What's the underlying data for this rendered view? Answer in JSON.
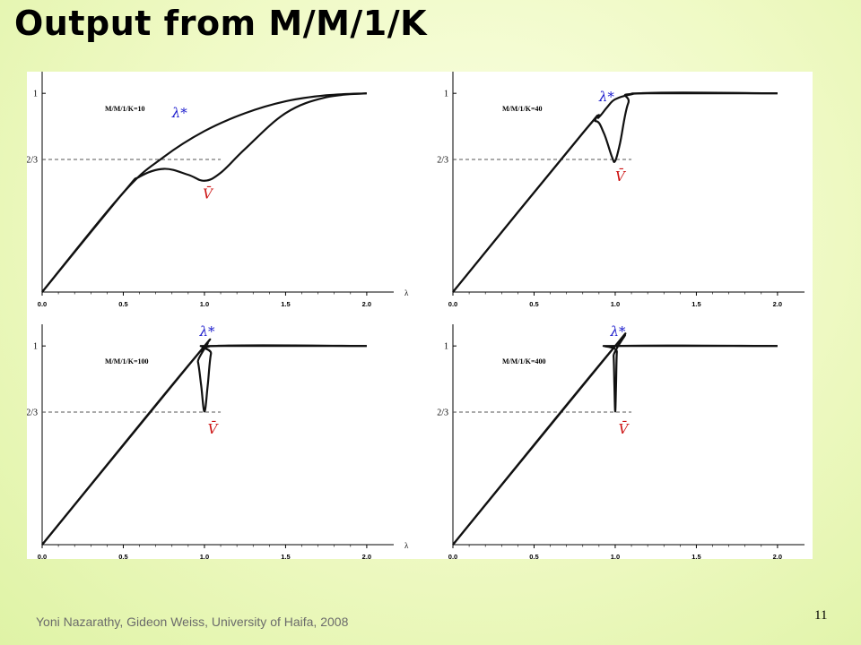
{
  "slide": {
    "title": "Output from M/M/1/K",
    "footer": "Yoni Nazarathy, Gideon Weiss, University of Haifa, 2008",
    "page_number": "11"
  },
  "colors": {
    "curve": "#111111",
    "lambda_star": "#1a1acc",
    "vbar": "#cc1111",
    "guide": "#555555"
  },
  "chart_data": [
    {
      "type": "line",
      "title": "M/M/1/K=10",
      "K": 10,
      "xlabel": "λ",
      "xticks": [
        "0.0",
        "0.5",
        "1.0",
        "1.5",
        "2.0"
      ],
      "xlim": [
        0,
        2.1
      ],
      "yticks": [
        "2/3",
        "1"
      ],
      "ylim": [
        0,
        1.1
      ],
      "reference_line": {
        "y": 0.667,
        "label": "2/3"
      },
      "annotations": [
        {
          "text": "λ*",
          "x": 0.8,
          "y": 0.88
        },
        {
          "text": "V̄",
          "x": 0.99,
          "y": 0.47
        }
      ],
      "series": [
        {
          "x": [
            0,
            0.5,
            0.75,
            1.0,
            1.25,
            1.5,
            1.75,
            2.0
          ],
          "y": [
            0,
            0.5,
            0.68,
            0.81,
            0.9,
            0.96,
            0.99,
            1.0
          ]
        },
        {
          "x": [
            0,
            0.5,
            0.6,
            0.75,
            0.9,
            1.0,
            1.1,
            1.25,
            1.5,
            1.75,
            2.0
          ],
          "y": [
            0,
            0.5,
            0.58,
            0.62,
            0.59,
            0.56,
            0.6,
            0.72,
            0.9,
            0.98,
            1.0
          ]
        }
      ]
    },
    {
      "type": "line",
      "title": "M/M/1/K=40",
      "K": 40,
      "xlabel": "λ",
      "xticks": [
        "0.0",
        "0.5",
        "1.0",
        "1.5",
        "2.0"
      ],
      "xlim": [
        0,
        2.1
      ],
      "yticks": [
        "2/3",
        "1"
      ],
      "ylim": [
        0,
        1.1
      ],
      "reference_line": {
        "y": 0.667,
        "label": "2/3"
      },
      "annotations": [
        {
          "text": "λ*",
          "x": 0.9,
          "y": 0.96
        },
        {
          "text": "V̄",
          "x": 1.0,
          "y": 0.56
        }
      ],
      "series": [
        {
          "x": [
            0,
            0.8,
            0.9,
            0.95,
            1.0,
            1.1,
            1.2,
            2.0
          ],
          "y": [
            0,
            0.8,
            0.88,
            0.93,
            0.97,
            0.995,
            1.0,
            1.0
          ]
        },
        {
          "x": [
            0,
            0.8,
            0.88,
            0.93,
            0.98,
            1.0,
            1.03,
            1.08,
            1.15,
            2.0
          ],
          "y": [
            0,
            0.8,
            0.86,
            0.8,
            0.68,
            0.66,
            0.75,
            0.95,
            1.0,
            1.0
          ]
        }
      ]
    },
    {
      "type": "line",
      "title": "M/M/1/K=100",
      "K": 100,
      "xlabel": "λ",
      "xticks": [
        "0.0",
        "0.5",
        "1.0",
        "1.5",
        "2.0"
      ],
      "xlim": [
        0,
        2.1
      ],
      "yticks": [
        "2/3",
        "1"
      ],
      "ylim": [
        0,
        1.1
      ],
      "reference_line": {
        "y": 0.667,
        "label": "2/3"
      },
      "annotations": [
        {
          "text": "λ*",
          "x": 0.97,
          "y": 1.05
        },
        {
          "text": "V̄",
          "x": 1.02,
          "y": 0.56
        }
      ],
      "series": [
        {
          "x": [
            0,
            0.95,
            0.98,
            1.0,
            1.03,
            1.06,
            2.0
          ],
          "y": [
            0,
            0.95,
            0.975,
            0.99,
            0.998,
            1.0,
            1.0
          ]
        },
        {
          "x": [
            0,
            0.94,
            0.96,
            0.98,
            1.0,
            1.02,
            1.04,
            1.07,
            2.0
          ],
          "y": [
            0,
            0.94,
            0.92,
            0.8,
            0.67,
            0.8,
            0.96,
            1.0,
            1.0
          ]
        }
      ]
    },
    {
      "type": "line",
      "title": "M/M/1/K=400",
      "K": 400,
      "xlabel": "λ",
      "xticks": [
        "0.0",
        "0.5",
        "1.0",
        "1.5",
        "2.0"
      ],
      "xlim": [
        0,
        2.1
      ],
      "yticks": [
        "2/3",
        "1"
      ],
      "ylim": [
        0,
        1.1
      ],
      "reference_line": {
        "y": 0.667,
        "label": "2/3"
      },
      "annotations": [
        {
          "text": "λ*",
          "x": 0.97,
          "y": 1.05
        },
        {
          "text": "V̄",
          "x": 1.02,
          "y": 0.56
        }
      ],
      "series": [
        {
          "x": [
            0,
            0.98,
            0.995,
            1.0,
            1.01,
            2.0
          ],
          "y": [
            0,
            0.98,
            0.995,
            0.999,
            1.0,
            1.0
          ]
        },
        {
          "x": [
            0,
            0.98,
            0.99,
            0.995,
            1.0,
            1.005,
            1.01,
            1.02,
            2.0
          ],
          "y": [
            0,
            0.98,
            0.95,
            0.8,
            0.67,
            0.8,
            0.97,
            1.0,
            1.0
          ]
        }
      ]
    }
  ]
}
